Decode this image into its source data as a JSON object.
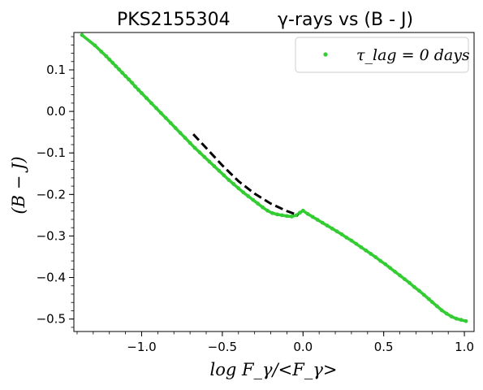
{
  "chart_data": {
    "type": "scatter",
    "title": "PKS2155304",
    "subtitle": "γ-rays vs (B - J)",
    "xlabel": "log F_γ/<F_γ>",
    "ylabel": "(B − J)",
    "xlim": [
      -1.42,
      1.06
    ],
    "ylim": [
      -0.53,
      0.19
    ],
    "x_ticks": [
      -1.0,
      -0.5,
      0.0,
      0.5,
      1.0
    ],
    "x_tick_labels": [
      "−1.0",
      "−0.5",
      "0.0",
      "0.5",
      "1.0"
    ],
    "y_ticks": [
      0.1,
      0.0,
      -0.1,
      -0.2,
      -0.3,
      -0.4,
      -0.5
    ],
    "y_tick_labels": [
      "0.1",
      "0.0",
      "−0.1",
      "−0.2",
      "−0.3",
      "−0.4",
      "−0.5"
    ],
    "grid": false,
    "legend_position": "top-right",
    "colors": {
      "points": "#33cc33",
      "fit": "#000000"
    },
    "series": [
      {
        "name": "τ_lag = 0  days",
        "kind": "points",
        "x": [
          -1.37,
          -1.29,
          -1.25,
          -1.22,
          -1.2,
          -1.18,
          -1.16,
          -1.14,
          -1.12,
          -1.1,
          -1.08,
          -1.06,
          -1.04,
          -1.02,
          -1.0,
          -0.97,
          -0.94,
          -0.91,
          -0.88,
          -0.85,
          -0.82,
          -0.79,
          -0.76,
          -0.73,
          -0.7,
          -0.67,
          -0.64,
          -0.61,
          -0.58,
          -0.55,
          -0.52,
          -0.49,
          -0.46,
          -0.43,
          -0.4,
          -0.37,
          -0.34,
          -0.31,
          -0.28,
          -0.25,
          -0.22,
          -0.19,
          -0.16,
          -0.13,
          -0.1,
          -0.07,
          -0.04,
          -0.02,
          0.0,
          0.03,
          0.06,
          0.09,
          0.12,
          0.15,
          0.18,
          0.21,
          0.24,
          0.27,
          0.3,
          0.33,
          0.36,
          0.39,
          0.42,
          0.45,
          0.48,
          0.51,
          0.54,
          0.57,
          0.6,
          0.63,
          0.66,
          0.69,
          0.72,
          0.75,
          0.78,
          0.8,
          0.83,
          0.86,
          0.89,
          0.92,
          0.95,
          0.98,
          1.01
        ],
        "y": [
          0.184,
          0.159,
          0.144,
          0.133,
          0.125,
          0.117,
          0.109,
          0.101,
          0.093,
          0.085,
          0.077,
          0.069,
          0.06,
          0.052,
          0.044,
          0.032,
          0.02,
          0.008,
          -0.004,
          -0.016,
          -0.028,
          -0.04,
          -0.052,
          -0.064,
          -0.076,
          -0.088,
          -0.099,
          -0.11,
          -0.121,
          -0.132,
          -0.143,
          -0.154,
          -0.165,
          -0.175,
          -0.185,
          -0.195,
          -0.204,
          -0.213,
          -0.222,
          -0.231,
          -0.239,
          -0.245,
          -0.248,
          -0.25,
          -0.252,
          -0.253,
          -0.25,
          -0.244,
          -0.239,
          -0.247,
          -0.254,
          -0.261,
          -0.268,
          -0.275,
          -0.282,
          -0.289,
          -0.296,
          -0.304,
          -0.311,
          -0.319,
          -0.327,
          -0.335,
          -0.343,
          -0.351,
          -0.36,
          -0.368,
          -0.377,
          -0.386,
          -0.395,
          -0.404,
          -0.413,
          -0.423,
          -0.432,
          -0.442,
          -0.452,
          -0.459,
          -0.469,
          -0.479,
          -0.487,
          -0.494,
          -0.499,
          -0.502,
          -0.505
        ]
      },
      {
        "name": "",
        "kind": "dashed-line",
        "x": [
          -0.68,
          -0.6,
          -0.5,
          -0.4,
          -0.3,
          -0.2,
          -0.1,
          -0.03
        ],
        "y": [
          -0.055,
          -0.088,
          -0.13,
          -0.168,
          -0.198,
          -0.222,
          -0.24,
          -0.25
        ]
      }
    ]
  }
}
